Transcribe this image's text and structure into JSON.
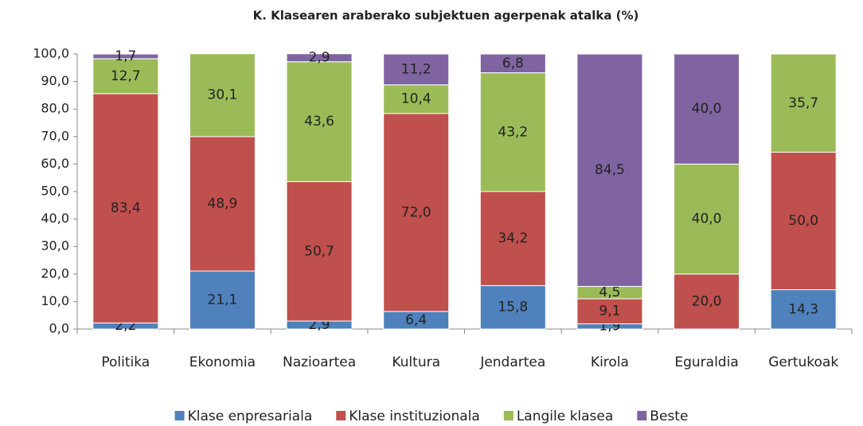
{
  "chart_data": {
    "type": "stacked_bar",
    "title": "K. Klasearen araberako subjektuen agerpenak atalka  (%)",
    "categories": [
      "Politika",
      "Ekonomia",
      "Nazioartea",
      "Kultura",
      "Jendartea",
      "Kirola",
      "Eguraldia",
      "Gertukoak"
    ],
    "series": [
      {
        "name": "Klase enpresariala",
        "color": "#4f81bd",
        "values": [
          2.2,
          21.1,
          2.9,
          6.4,
          15.8,
          1.9,
          null,
          14.3
        ],
        "value_labels": [
          "2,2",
          "21,1",
          "2,9",
          "6,4",
          "15,8",
          "1,9",
          null,
          "14,3"
        ]
      },
      {
        "name": "Klase instituzionala",
        "color": "#c0504d",
        "values": [
          83.4,
          48.9,
          50.7,
          72.0,
          34.2,
          9.1,
          20.0,
          50.0
        ],
        "value_labels": [
          "83,4",
          "48,9",
          "50,7",
          "72,0",
          "34,2",
          "9,1",
          "20,0",
          "50,0"
        ]
      },
      {
        "name": "Langile klasea",
        "color": "#9bbb59",
        "values": [
          12.7,
          30.1,
          43.6,
          10.4,
          43.2,
          4.5,
          40.0,
          35.7
        ],
        "value_labels": [
          "12,7",
          "30,1",
          "43,6",
          "10,4",
          "43,2",
          "4,5",
          "40,0",
          "35,7"
        ]
      },
      {
        "name": "Beste",
        "color": "#8064a2",
        "values": [
          1.7,
          null,
          2.9,
          11.2,
          6.8,
          84.5,
          40.0,
          null
        ],
        "value_labels": [
          "1,7",
          null,
          "2,9",
          "11,2",
          "6,8",
          "84,5",
          "40,0",
          null
        ]
      }
    ],
    "ylim": [
      0,
      100
    ],
    "yticks": [
      {
        "value": 0,
        "label": "0,0"
      },
      {
        "value": 10,
        "label": "10,0"
      },
      {
        "value": 20,
        "label": "20,0"
      },
      {
        "value": 30,
        "label": "30,0"
      },
      {
        "value": 40,
        "label": "40,0"
      },
      {
        "value": 50,
        "label": "50,0"
      },
      {
        "value": 60,
        "label": "60,0"
      },
      {
        "value": 70,
        "label": "70,0"
      },
      {
        "value": 80,
        "label": "80,0"
      },
      {
        "value": 90,
        "label": "90,0"
      },
      {
        "value": 100,
        "label": "100,0"
      }
    ],
    "legend": "bottom"
  }
}
